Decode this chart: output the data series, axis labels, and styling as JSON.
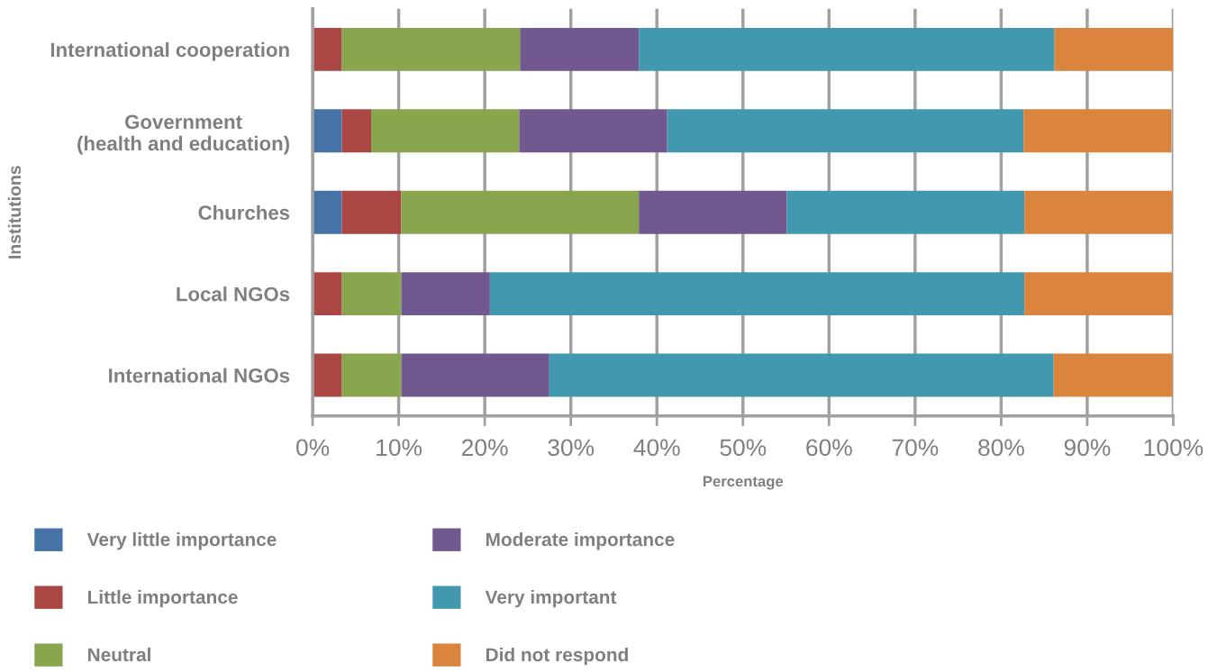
{
  "chart_data": {
    "type": "bar",
    "orientation": "horizontal",
    "stacked": true,
    "categories": [
      "International cooperation",
      "Government\n(health and education)",
      "Churches",
      "Local NGOs",
      "International NGOs"
    ],
    "series": [
      {
        "name": "Very little importance",
        "color": "#4572a7",
        "values": [
          null,
          3.4,
          3.4,
          null,
          null
        ]
      },
      {
        "name": "Little importance",
        "color": "#aa4643",
        "values": [
          3.4,
          3.4,
          6.9,
          3.4,
          3.4
        ]
      },
      {
        "name": "Neutral",
        "color": "#89a54e",
        "values": [
          20.7,
          17.2,
          27.6,
          6.9,
          6.9
        ]
      },
      {
        "name": "Moderate importance",
        "color": "#71588f",
        "values": [
          13.8,
          17.2,
          17.2,
          10.3,
          17.2
        ]
      },
      {
        "name": "Very important",
        "color": "#4198af",
        "values": [
          48.3,
          41.4,
          27.6,
          62.1,
          58.6
        ]
      },
      {
        "name": "Did not respond",
        "color": "#db843d",
        "values": [
          13.8,
          17.2,
          17.2,
          17.2,
          13.8
        ]
      }
    ],
    "xlim": [
      0,
      100
    ],
    "xticks": [
      {
        "value": 0,
        "label": "0%"
      },
      {
        "value": 10,
        "label": "10%"
      },
      {
        "value": 20,
        "label": "20%"
      },
      {
        "value": 30,
        "label": "30%"
      },
      {
        "value": 40,
        "label": "40%"
      },
      {
        "value": 50,
        "label": "50%"
      },
      {
        "value": 60,
        "label": "60%"
      },
      {
        "value": 70,
        "label": "70%"
      },
      {
        "value": 80,
        "label": "80%"
      },
      {
        "value": 90,
        "label": "90%"
      },
      {
        "value": 100,
        "label": "100%"
      }
    ],
    "xlabel": "Percentage",
    "ylabel": "Institutions",
    "grid": "x",
    "legend": "bottom"
  }
}
